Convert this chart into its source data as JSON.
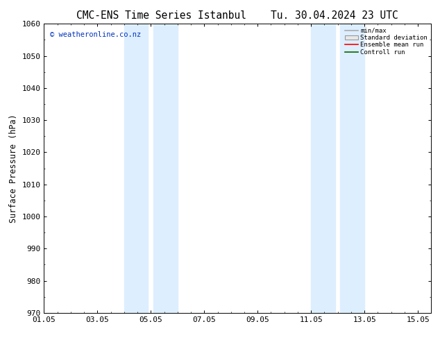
{
  "title": "CMC-ENS Time Series Istanbul    Tu. 30.04.2024 23 UTC",
  "ylabel": "Surface Pressure (hPa)",
  "xlabel": "",
  "ylim": [
    970,
    1060
  ],
  "yticks": [
    970,
    980,
    990,
    1000,
    1010,
    1020,
    1030,
    1040,
    1050,
    1060
  ],
  "xlim_start": 0.0,
  "xlim_end": 14.5,
  "xtick_positions": [
    0,
    2,
    4,
    6,
    8,
    10,
    12,
    14
  ],
  "xtick_labels": [
    "01.05",
    "03.05",
    "05.05",
    "07.05",
    "09.05",
    "11.05",
    "13.05",
    "15.05"
  ],
  "shade_bands": [
    {
      "xmin": 3.0,
      "xmax": 3.9,
      "alpha": 1.0
    },
    {
      "xmin": 4.1,
      "xmax": 5.0,
      "alpha": 1.0
    },
    {
      "xmin": 10.0,
      "xmax": 10.9,
      "alpha": 1.0
    },
    {
      "xmin": 11.1,
      "xmax": 12.0,
      "alpha": 1.0
    }
  ],
  "shade_color": "#ddeeff",
  "watermark_text": "© weatheronline.co.nz",
  "watermark_color": "#0033bb",
  "legend_entries": [
    {
      "label": "min/max",
      "color": "#aaaaaa",
      "type": "line"
    },
    {
      "label": "Standard deviation",
      "color": "#cccccc",
      "type": "box"
    },
    {
      "label": "Ensemble mean run",
      "color": "#ff0000",
      "type": "line"
    },
    {
      "label": "Controll run",
      "color": "#006600",
      "type": "line"
    }
  ],
  "bg_color": "#ffffff",
  "title_fontsize": 10.5,
  "tick_fontsize": 8,
  "ylabel_fontsize": 8.5
}
